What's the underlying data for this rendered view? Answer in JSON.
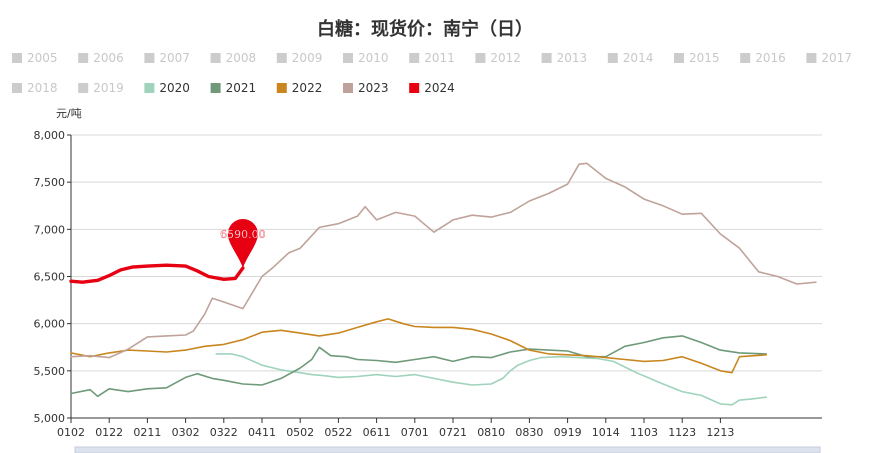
{
  "chart_data": {
    "type": "line",
    "title": "白糖：现货价：南宁（日）",
    "ylabel": "元/吨",
    "ylim": [
      5000,
      8000
    ],
    "yticks": [
      "5,000",
      "5,500",
      "6,000",
      "6,500",
      "7,000",
      "7,500",
      "8,000"
    ],
    "xticks": [
      "0102",
      "0122",
      "0211",
      "0302",
      "0322",
      "0411",
      "0502",
      "0522",
      "0611",
      "0701",
      "0721",
      "0810",
      "0830",
      "0919",
      "1014",
      "1103",
      "1123",
      "1213"
    ],
    "grid": true,
    "legend_position": "top",
    "legend": [
      {
        "name": "2005",
        "color": "#cccccc",
        "active": false
      },
      {
        "name": "2006",
        "color": "#cccccc",
        "active": false
      },
      {
        "name": "2007",
        "color": "#cccccc",
        "active": false
      },
      {
        "name": "2008",
        "color": "#cccccc",
        "active": false
      },
      {
        "name": "2009",
        "color": "#cccccc",
        "active": false
      },
      {
        "name": "2010",
        "color": "#cccccc",
        "active": false
      },
      {
        "name": "2011",
        "color": "#cccccc",
        "active": false
      },
      {
        "name": "2012",
        "color": "#cccccc",
        "active": false
      },
      {
        "name": "2013",
        "color": "#cccccc",
        "active": false
      },
      {
        "name": "2014",
        "color": "#cccccc",
        "active": false
      },
      {
        "name": "2015",
        "color": "#cccccc",
        "active": false
      },
      {
        "name": "2016",
        "color": "#cccccc",
        "active": false
      },
      {
        "name": "2017",
        "color": "#cccccc",
        "active": false
      },
      {
        "name": "2018",
        "color": "#cccccc",
        "active": false
      },
      {
        "name": "2019",
        "color": "#cccccc",
        "active": false
      },
      {
        "name": "2020",
        "color": "#9fd3bb",
        "active": true
      },
      {
        "name": "2021",
        "color": "#6f9a7a",
        "active": true
      },
      {
        "name": "2022",
        "color": "#c9861f",
        "active": true
      },
      {
        "name": "2023",
        "color": "#bfa39a",
        "active": true
      },
      {
        "name": "2024",
        "color": "#e60012",
        "active": true
      }
    ],
    "series": [
      {
        "name": "2020",
        "color": "#9fd3bb",
        "width": 1.6,
        "points": [
          [
            3.8,
            5680
          ],
          [
            4.2,
            5680
          ],
          [
            4.5,
            5650
          ],
          [
            5.0,
            5560
          ],
          [
            5.5,
            5510
          ],
          [
            6.0,
            5480
          ],
          [
            6.3,
            5460
          ],
          [
            6.6,
            5450
          ],
          [
            7.0,
            5430
          ],
          [
            7.5,
            5440
          ],
          [
            8.0,
            5460
          ],
          [
            8.5,
            5440
          ],
          [
            9.0,
            5460
          ],
          [
            9.5,
            5420
          ],
          [
            10.0,
            5380
          ],
          [
            10.5,
            5350
          ],
          [
            11.0,
            5360
          ],
          [
            11.3,
            5420
          ],
          [
            11.5,
            5500
          ],
          [
            11.7,
            5560
          ],
          [
            12.0,
            5610
          ],
          [
            12.3,
            5640
          ],
          [
            12.8,
            5650
          ],
          [
            13.3,
            5640
          ],
          [
            13.8,
            5630
          ],
          [
            14.2,
            5600
          ],
          [
            14.8,
            5480
          ],
          [
            15.5,
            5360
          ],
          [
            16.0,
            5280
          ],
          [
            16.5,
            5240
          ],
          [
            17.0,
            5150
          ],
          [
            17.3,
            5140
          ],
          [
            17.5,
            5190
          ],
          [
            17.8,
            5200
          ],
          [
            18.2,
            5220
          ]
        ]
      },
      {
        "name": "2021",
        "color": "#6f9a7a",
        "width": 1.6,
        "points": [
          [
            0,
            5260
          ],
          [
            0.5,
            5300
          ],
          [
            0.7,
            5230
          ],
          [
            1.0,
            5310
          ],
          [
            1.5,
            5280
          ],
          [
            2.0,
            5310
          ],
          [
            2.5,
            5320
          ],
          [
            3.0,
            5430
          ],
          [
            3.3,
            5470
          ],
          [
            3.7,
            5420
          ],
          [
            4.0,
            5400
          ],
          [
            4.5,
            5360
          ],
          [
            5.0,
            5350
          ],
          [
            5.5,
            5420
          ],
          [
            6.0,
            5530
          ],
          [
            6.3,
            5620
          ],
          [
            6.5,
            5750
          ],
          [
            6.8,
            5660
          ],
          [
            7.2,
            5650
          ],
          [
            7.5,
            5620
          ],
          [
            8.0,
            5610
          ],
          [
            8.5,
            5590
          ],
          [
            9.0,
            5620
          ],
          [
            9.5,
            5650
          ],
          [
            10.0,
            5600
          ],
          [
            10.5,
            5650
          ],
          [
            11.0,
            5640
          ],
          [
            11.5,
            5700
          ],
          [
            12.0,
            5730
          ],
          [
            12.5,
            5720
          ],
          [
            13.0,
            5710
          ],
          [
            13.5,
            5650
          ],
          [
            14.0,
            5650
          ],
          [
            14.5,
            5760
          ],
          [
            15.0,
            5800
          ],
          [
            15.5,
            5850
          ],
          [
            16.0,
            5870
          ],
          [
            16.5,
            5800
          ],
          [
            17.0,
            5720
          ],
          [
            17.5,
            5690
          ],
          [
            18.2,
            5680
          ]
        ]
      },
      {
        "name": "2022",
        "color": "#c9861f",
        "width": 1.6,
        "points": [
          [
            0,
            5690
          ],
          [
            0.5,
            5650
          ],
          [
            1.0,
            5690
          ],
          [
            1.5,
            5720
          ],
          [
            2.0,
            5710
          ],
          [
            2.5,
            5700
          ],
          [
            3.0,
            5720
          ],
          [
            3.5,
            5760
          ],
          [
            4.0,
            5780
          ],
          [
            4.5,
            5830
          ],
          [
            5.0,
            5910
          ],
          [
            5.5,
            5930
          ],
          [
            6.0,
            5900
          ],
          [
            6.5,
            5870
          ],
          [
            7.0,
            5900
          ],
          [
            7.5,
            5960
          ],
          [
            8.0,
            6020
          ],
          [
            8.3,
            6050
          ],
          [
            8.7,
            6000
          ],
          [
            9.0,
            5970
          ],
          [
            9.5,
            5960
          ],
          [
            10.0,
            5960
          ],
          [
            10.5,
            5940
          ],
          [
            11.0,
            5890
          ],
          [
            11.5,
            5820
          ],
          [
            12.0,
            5720
          ],
          [
            12.5,
            5680
          ],
          [
            13.0,
            5670
          ],
          [
            13.5,
            5660
          ],
          [
            14.0,
            5640
          ],
          [
            14.5,
            5620
          ],
          [
            15.0,
            5600
          ],
          [
            15.5,
            5610
          ],
          [
            16.0,
            5650
          ],
          [
            16.5,
            5580
          ],
          [
            17.0,
            5500
          ],
          [
            17.3,
            5480
          ],
          [
            17.5,
            5650
          ],
          [
            18.2,
            5670
          ]
        ]
      },
      {
        "name": "2023",
        "color": "#bfa39a",
        "width": 1.6,
        "points": [
          [
            0,
            5650
          ],
          [
            0.5,
            5660
          ],
          [
            1.0,
            5640
          ],
          [
            1.5,
            5730
          ],
          [
            2.0,
            5860
          ],
          [
            2.5,
            5870
          ],
          [
            3.0,
            5880
          ],
          [
            3.2,
            5920
          ],
          [
            3.5,
            6100
          ],
          [
            3.7,
            6270
          ],
          [
            4.0,
            6230
          ],
          [
            4.5,
            6160
          ],
          [
            5.0,
            6500
          ],
          [
            5.3,
            6600
          ],
          [
            5.7,
            6750
          ],
          [
            6.0,
            6800
          ],
          [
            6.5,
            7020
          ],
          [
            7.0,
            7060
          ],
          [
            7.5,
            7140
          ],
          [
            7.7,
            7240
          ],
          [
            8.0,
            7100
          ],
          [
            8.5,
            7180
          ],
          [
            9.0,
            7140
          ],
          [
            9.5,
            6970
          ],
          [
            10.0,
            7100
          ],
          [
            10.5,
            7150
          ],
          [
            11.0,
            7130
          ],
          [
            11.5,
            7180
          ],
          [
            12.0,
            7300
          ],
          [
            12.5,
            7380
          ],
          [
            13.0,
            7480
          ],
          [
            13.3,
            7690
          ],
          [
            13.5,
            7700
          ],
          [
            14.0,
            7540
          ],
          [
            14.5,
            7450
          ],
          [
            15.0,
            7320
          ],
          [
            15.5,
            7250
          ],
          [
            16.0,
            7160
          ],
          [
            16.5,
            7170
          ],
          [
            17.0,
            6950
          ],
          [
            17.5,
            6800
          ],
          [
            18.0,
            6550
          ],
          [
            18.5,
            6500
          ],
          [
            19.0,
            6420
          ],
          [
            19.5,
            6440
          ]
        ]
      },
      {
        "name": "2024",
        "color": "#e60012",
        "width": 3.4,
        "points": [
          [
            0,
            6450
          ],
          [
            0.3,
            6440
          ],
          [
            0.7,
            6460
          ],
          [
            1.0,
            6510
          ],
          [
            1.3,
            6570
          ],
          [
            1.6,
            6600
          ],
          [
            2.0,
            6610
          ],
          [
            2.5,
            6620
          ],
          [
            3.0,
            6610
          ],
          [
            3.3,
            6560
          ],
          [
            3.6,
            6500
          ],
          [
            4.0,
            6470
          ],
          [
            4.3,
            6480
          ],
          [
            4.5,
            6590
          ]
        ]
      }
    ],
    "marker": {
      "series": "2024",
      "x": 4.5,
      "value": 6590,
      "label": "6590.00",
      "color": "#e60012"
    }
  }
}
